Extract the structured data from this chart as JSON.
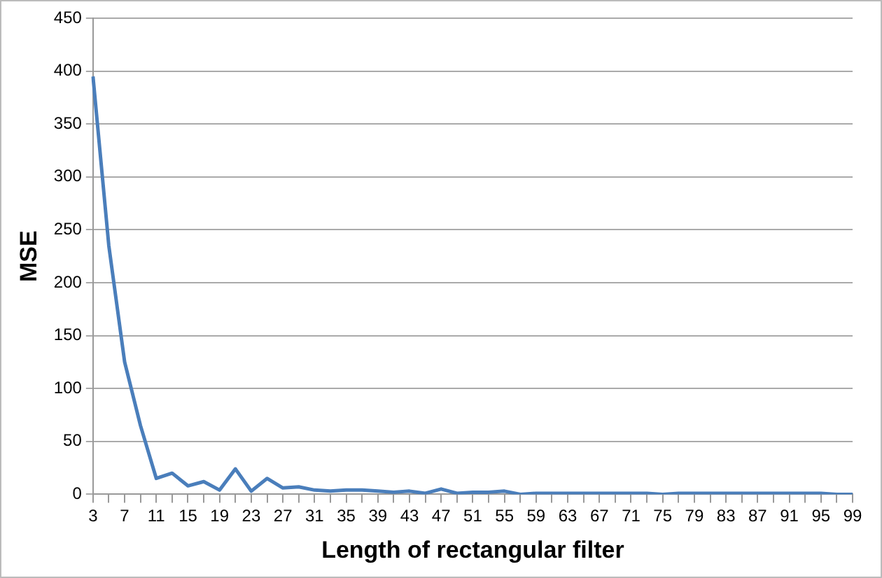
{
  "chart_data": {
    "type": "line",
    "xlabel": "Length of rectangular filter",
    "ylabel": "MSE",
    "categories": [
      "3",
      null,
      "7",
      null,
      "11",
      null,
      "15",
      null,
      "19",
      null,
      "23",
      null,
      "27",
      null,
      "31",
      null,
      "35",
      null,
      "39",
      null,
      "43",
      null,
      "47",
      null,
      "51",
      null,
      "55",
      null,
      "59",
      null,
      "63",
      null,
      "67",
      null,
      "71",
      null,
      "75",
      null,
      "79",
      null,
      "83",
      null,
      "87",
      null,
      "91",
      null,
      "95",
      null,
      "99"
    ],
    "series": [
      {
        "color": "#4a7ebb",
        "values": [
          395,
          235,
          125,
          65,
          15,
          20,
          8,
          12,
          4,
          24,
          3,
          15,
          6,
          7,
          4,
          3,
          4,
          4,
          3,
          2,
          3,
          1,
          5,
          1,
          2,
          2,
          3,
          0,
          1,
          1,
          1,
          1,
          1,
          1,
          1,
          1,
          0,
          1,
          1,
          1,
          1,
          1,
          1,
          1,
          1,
          1,
          1,
          0,
          0
        ]
      }
    ],
    "ylim": [
      0,
      450
    ],
    "yticks": [
      0,
      50,
      100,
      150,
      200,
      250,
      300,
      350,
      400,
      450
    ],
    "grid": "y",
    "marker": "none",
    "line_style": "solid",
    "legend": false
  }
}
